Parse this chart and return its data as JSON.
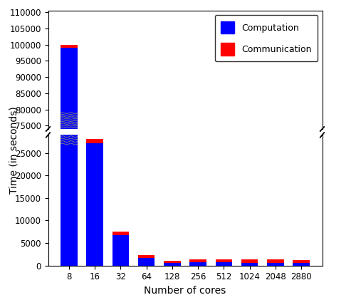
{
  "cores": [
    8,
    16,
    32,
    64,
    128,
    256,
    512,
    1024,
    2048,
    2880
  ],
  "computation": [
    99000,
    27200,
    6800,
    1600,
    550,
    700,
    700,
    600,
    600,
    500
  ],
  "communication": [
    900,
    950,
    700,
    700,
    500,
    700,
    700,
    700,
    700,
    700
  ],
  "ylabel": "Time (in seconds)",
  "xlabel": "Number of cores",
  "legend_computation": "Computation",
  "legend_communication": "Communication",
  "color_computation": "#0000ff",
  "color_communication": "#ff0000",
  "ylim_lower": [
    0,
    29000
  ],
  "ylim_upper": [
    74000,
    110500
  ],
  "yticks_lower": [
    0,
    5000,
    10000,
    15000,
    20000,
    25000
  ],
  "yticks_upper": [
    75000,
    80000,
    85000,
    90000,
    95000,
    100000,
    105000,
    110000
  ],
  "ytick_labels_lower": [
    "0",
    "5000",
    "10000",
    "15000",
    "20000",
    "25000"
  ],
  "ytick_labels_upper": [
    "75000",
    "80000",
    "85000",
    "90000",
    "95000",
    "100000",
    "105000",
    "110000"
  ]
}
